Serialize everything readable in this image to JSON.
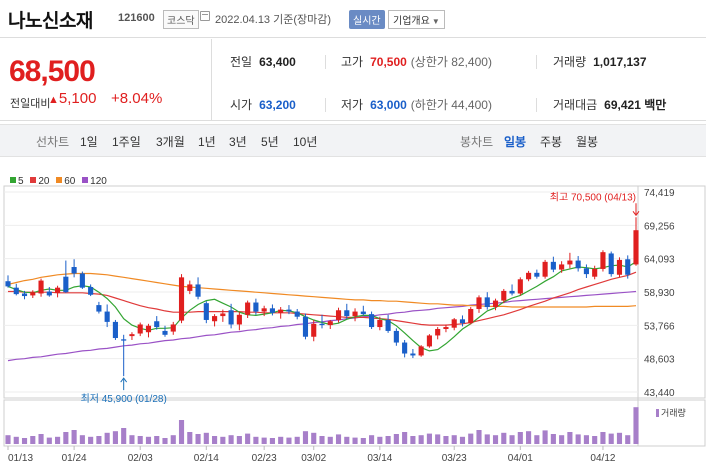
{
  "header": {
    "name": "나노신소재",
    "code": "121600",
    "market": "코스닥",
    "date": "2022.04.13 기준(장마감)",
    "realtime": "실시간",
    "company_info": "기업개요"
  },
  "quote": {
    "current": "68,500",
    "change_label": "전일대비",
    "change_value": "5,100",
    "change_pct": "+8.04%",
    "prev_label": "전일",
    "prev_value": "63,400",
    "high_label": "고가",
    "high_value": "70,500",
    "upper_limit": "(상한가 82,400)",
    "volume_label": "거래량",
    "volume_value": "1,017,137",
    "open_label": "시가",
    "open_value": "63,200",
    "low_label": "저가",
    "low_value": "63,000",
    "lower_limit": "(하한가 44,400)",
    "amount_label": "거래대금",
    "amount_value": "69,421 백만"
  },
  "toolbar": {
    "line_chart": "선차트",
    "periods": [
      "1일",
      "1주일",
      "3개월",
      "1년",
      "3년",
      "5년",
      "10년"
    ],
    "candle_chart": "봉차트",
    "candle_types": [
      "일봉",
      "주봉",
      "월봉"
    ],
    "active_candle": "일봉"
  },
  "colors": {
    "up": "#e01f1f",
    "down": "#1a5fc9",
    "ma5": "#33a532",
    "ma20": "#e03a3a",
    "ma60": "#f08a24",
    "ma120": "#9a52c6"
  },
  "chart_data": {
    "type": "candlestick",
    "legend": [
      {
        "name": "5",
        "color": "#33a532"
      },
      {
        "name": "20",
        "color": "#e03a3a"
      },
      {
        "name": "60",
        "color": "#f08a24"
      },
      {
        "name": "120",
        "color": "#9a52c6"
      }
    ],
    "y_ticks": [
      "74,419",
      "69,256",
      "64,093",
      "58,930",
      "53,766",
      "48,603",
      "43,440"
    ],
    "ylim": [
      43440,
      74419
    ],
    "x_ticks": [
      "01/13",
      "01/24",
      "02/03",
      "02/14",
      "02/23",
      "03/02",
      "03/14",
      "03/23",
      "04/01",
      "04/12"
    ],
    "annotations": {
      "max": "최고 70,500 (04/13)",
      "min": "최저 45,900 (01/28)"
    },
    "volume_label": "거래량",
    "candles": [
      {
        "o": 60600,
        "h": 61500,
        "l": 59600,
        "c": 59800
      },
      {
        "o": 59600,
        "h": 60200,
        "l": 58400,
        "c": 58600
      },
      {
        "o": 58700,
        "h": 59100,
        "l": 57800,
        "c": 58300
      },
      {
        "o": 58400,
        "h": 59200,
        "l": 58000,
        "c": 58900
      },
      {
        "o": 58700,
        "h": 61000,
        "l": 58200,
        "c": 60700
      },
      {
        "o": 59000,
        "h": 59700,
        "l": 58200,
        "c": 58400
      },
      {
        "o": 58800,
        "h": 59900,
        "l": 58100,
        "c": 59600
      },
      {
        "o": 61300,
        "h": 63800,
        "l": 58800,
        "c": 58900
      },
      {
        "o": 62800,
        "h": 64000,
        "l": 61200,
        "c": 61800
      },
      {
        "o": 61800,
        "h": 62100,
        "l": 59400,
        "c": 59600
      },
      {
        "o": 59700,
        "h": 60100,
        "l": 58300,
        "c": 58500
      },
      {
        "o": 56900,
        "h": 57400,
        "l": 55600,
        "c": 55900
      },
      {
        "o": 55900,
        "h": 57000,
        "l": 53500,
        "c": 54300
      },
      {
        "o": 54300,
        "h": 54600,
        "l": 51500,
        "c": 51800
      },
      {
        "o": 51600,
        "h": 52300,
        "l": 45900,
        "c": 51400
      },
      {
        "o": 52100,
        "h": 52700,
        "l": 51500,
        "c": 52400
      },
      {
        "o": 52500,
        "h": 54200,
        "l": 52100,
        "c": 53900
      },
      {
        "o": 52700,
        "h": 54000,
        "l": 51900,
        "c": 53700
      },
      {
        "o": 54400,
        "h": 55200,
        "l": 53100,
        "c": 53500
      },
      {
        "o": 52900,
        "h": 53700,
        "l": 52000,
        "c": 52300
      },
      {
        "o": 52800,
        "h": 54300,
        "l": 52300,
        "c": 53900
      },
      {
        "o": 54500,
        "h": 61700,
        "l": 54100,
        "c": 61200
      },
      {
        "o": 59100,
        "h": 60700,
        "l": 58600,
        "c": 60100
      },
      {
        "o": 60100,
        "h": 61200,
        "l": 57800,
        "c": 58200
      },
      {
        "o": 57200,
        "h": 57500,
        "l": 54100,
        "c": 54600
      },
      {
        "o": 54400,
        "h": 55500,
        "l": 53600,
        "c": 55200
      },
      {
        "o": 55200,
        "h": 56200,
        "l": 54300,
        "c": 55600
      },
      {
        "o": 56100,
        "h": 57100,
        "l": 53300,
        "c": 53900
      },
      {
        "o": 53900,
        "h": 55800,
        "l": 53000,
        "c": 55400
      },
      {
        "o": 55400,
        "h": 57600,
        "l": 54900,
        "c": 57300
      },
      {
        "o": 57300,
        "h": 57900,
        "l": 55400,
        "c": 55900
      },
      {
        "o": 55900,
        "h": 56800,
        "l": 55200,
        "c": 56400
      },
      {
        "o": 56400,
        "h": 57000,
        "l": 55300,
        "c": 55700
      },
      {
        "o": 55700,
        "h": 56600,
        "l": 54800,
        "c": 56200
      },
      {
        "o": 56200,
        "h": 56900,
        "l": 55500,
        "c": 55900
      },
      {
        "o": 55900,
        "h": 56300,
        "l": 54700,
        "c": 55100
      },
      {
        "o": 55100,
        "h": 55600,
        "l": 51600,
        "c": 52000
      },
      {
        "o": 52000,
        "h": 54600,
        "l": 51300,
        "c": 54000
      },
      {
        "o": 54000,
        "h": 55400,
        "l": 53300,
        "c": 53800
      },
      {
        "o": 53800,
        "h": 54600,
        "l": 53200,
        "c": 54400
      },
      {
        "o": 54600,
        "h": 56500,
        "l": 54200,
        "c": 56100
      },
      {
        "o": 56100,
        "h": 57100,
        "l": 54800,
        "c": 55200
      },
      {
        "o": 55200,
        "h": 56400,
        "l": 54400,
        "c": 55900
      },
      {
        "o": 55900,
        "h": 56800,
        "l": 55300,
        "c": 55500
      },
      {
        "o": 55500,
        "h": 55900,
        "l": 53200,
        "c": 53500
      },
      {
        "o": 53500,
        "h": 55100,
        "l": 53000,
        "c": 54600
      },
      {
        "o": 54600,
        "h": 55400,
        "l": 52600,
        "c": 52900
      },
      {
        "o": 52900,
        "h": 53300,
        "l": 50600,
        "c": 51100
      },
      {
        "o": 51100,
        "h": 51500,
        "l": 48800,
        "c": 49400
      },
      {
        "o": 49400,
        "h": 50100,
        "l": 48700,
        "c": 49100
      },
      {
        "o": 49100,
        "h": 50700,
        "l": 48900,
        "c": 50500
      },
      {
        "o": 50500,
        "h": 52400,
        "l": 50300,
        "c": 52200
      },
      {
        "o": 52200,
        "h": 53500,
        "l": 51600,
        "c": 53200
      },
      {
        "o": 53200,
        "h": 53900,
        "l": 52700,
        "c": 53500
      },
      {
        "o": 53400,
        "h": 54900,
        "l": 53000,
        "c": 54700
      },
      {
        "o": 54700,
        "h": 55300,
        "l": 53600,
        "c": 54100
      },
      {
        "o": 54100,
        "h": 56600,
        "l": 53900,
        "c": 56300
      },
      {
        "o": 56300,
        "h": 58400,
        "l": 55700,
        "c": 58100
      },
      {
        "o": 58100,
        "h": 58900,
        "l": 56200,
        "c": 56600
      },
      {
        "o": 56600,
        "h": 57900,
        "l": 56100,
        "c": 57600
      },
      {
        "o": 57600,
        "h": 59400,
        "l": 57200,
        "c": 59100
      },
      {
        "o": 59100,
        "h": 60100,
        "l": 58400,
        "c": 58700
      },
      {
        "o": 58700,
        "h": 61200,
        "l": 58400,
        "c": 60900
      },
      {
        "o": 60900,
        "h": 62200,
        "l": 60600,
        "c": 61900
      },
      {
        "o": 61900,
        "h": 62400,
        "l": 61000,
        "c": 61300
      },
      {
        "o": 61300,
        "h": 63900,
        "l": 61000,
        "c": 63600
      },
      {
        "o": 63600,
        "h": 64400,
        "l": 62000,
        "c": 62400
      },
      {
        "o": 62400,
        "h": 63700,
        "l": 61900,
        "c": 63200
      },
      {
        "o": 63200,
        "h": 65000,
        "l": 62600,
        "c": 63800
      },
      {
        "o": 63800,
        "h": 64500,
        "l": 62100,
        "c": 62600
      },
      {
        "o": 62600,
        "h": 63200,
        "l": 61100,
        "c": 61700
      },
      {
        "o": 61300,
        "h": 63000,
        "l": 60900,
        "c": 62500
      },
      {
        "o": 62500,
        "h": 65400,
        "l": 62100,
        "c": 65100
      },
      {
        "o": 64900,
        "h": 65200,
        "l": 61300,
        "c": 61700
      },
      {
        "o": 61600,
        "h": 64300,
        "l": 61200,
        "c": 63900
      },
      {
        "o": 64000,
        "h": 64600,
        "l": 61000,
        "c": 61600
      },
      {
        "o": 63200,
        "h": 70500,
        "l": 63000,
        "c": 68500
      }
    ],
    "volumes": [
      0.22,
      0.18,
      0.15,
      0.2,
      0.25,
      0.16,
      0.18,
      0.3,
      0.35,
      0.22,
      0.18,
      0.2,
      0.28,
      0.32,
      0.4,
      0.22,
      0.2,
      0.18,
      0.2,
      0.15,
      0.22,
      0.6,
      0.3,
      0.25,
      0.28,
      0.2,
      0.18,
      0.22,
      0.2,
      0.26,
      0.18,
      0.16,
      0.15,
      0.18,
      0.16,
      0.18,
      0.32,
      0.28,
      0.2,
      0.18,
      0.24,
      0.18,
      0.16,
      0.15,
      0.22,
      0.18,
      0.2,
      0.25,
      0.3,
      0.2,
      0.22,
      0.26,
      0.24,
      0.2,
      0.22,
      0.18,
      0.26,
      0.35,
      0.24,
      0.22,
      0.28,
      0.22,
      0.3,
      0.32,
      0.22,
      0.34,
      0.25,
      0.22,
      0.3,
      0.24,
      0.22,
      0.2,
      0.3,
      0.26,
      0.28,
      0.22,
      0.92
    ],
    "ma5": [
      59800,
      59300,
      58900,
      58800,
      59200,
      59400,
      59200,
      59200,
      59700,
      59900,
      59700,
      58900,
      57900,
      56600,
      54800,
      53800,
      53300,
      53000,
      53300,
      53300,
      53400,
      54900,
      56100,
      57000,
      57600,
      57800,
      57200,
      56600,
      55800,
      55400,
      55300,
      55500,
      55700,
      56100,
      56000,
      55700,
      55100,
      54600,
      54200,
      53900,
      54100,
      54700,
      55100,
      55300,
      55300,
      54800,
      54500,
      53700,
      52600,
      51400,
      50300,
      49800,
      50000,
      50900,
      52000,
      53200,
      54000,
      55000,
      56000,
      56500,
      57400,
      58000,
      58400,
      59100,
      59800,
      60600,
      61300,
      62200,
      62500,
      62800,
      62700,
      62500,
      62700,
      63000,
      63100,
      62800,
      63600
    ],
    "ma20": [
      59000,
      59000,
      58900,
      58900,
      58900,
      58900,
      58800,
      58800,
      58800,
      58800,
      58700,
      58600,
      58400,
      58000,
      57600,
      57200,
      56800,
      56500,
      56300,
      56000,
      55800,
      55800,
      55800,
      55900,
      55900,
      55900,
      55900,
      55900,
      55900,
      55800,
      55800,
      55700,
      55700,
      55700,
      55700,
      55600,
      55500,
      55400,
      55300,
      55200,
      55100,
      55000,
      55000,
      55000,
      54900,
      54800,
      54700,
      54500,
      54300,
      54100,
      53900,
      53800,
      53800,
      53800,
      53900,
      54000,
      54200,
      54500,
      54800,
      55100,
      55400,
      55800,
      56200,
      56700,
      57100,
      57500,
      58000,
      58400,
      58800,
      59300,
      59700,
      60100,
      60500,
      60900,
      61200,
      61500,
      62000
    ],
    "ma60": [
      60100,
      60400,
      60700,
      60900,
      61200,
      61400,
      61600,
      61700,
      61800,
      61800,
      61800,
      61700,
      61600,
      61400,
      61200,
      61000,
      60800,
      60600,
      60400,
      60200,
      60000,
      59800,
      59700,
      59600,
      59500,
      59400,
      59300,
      59200,
      59100,
      59000,
      58900,
      58800,
      58700,
      58600,
      58500,
      58400,
      58300,
      58200,
      58100,
      58000,
      57900,
      57800,
      57700,
      57700,
      57600,
      57600,
      57500,
      57500,
      57400,
      57300,
      57200,
      57100,
      57100,
      57000,
      56900,
      56900,
      56800,
      56800,
      56700,
      56700,
      56700,
      56600,
      56600,
      56600,
      56600,
      56600,
      56600,
      56600,
      56600,
      56600,
      56600,
      56700,
      56700,
      56700,
      56700,
      56700,
      56800
    ],
    "ma120": [
      48300,
      48500,
      48600,
      48800,
      48900,
      49100,
      49300,
      49400,
      49600,
      49800,
      49900,
      50100,
      50200,
      50400,
      50600,
      50700,
      50900,
      51000,
      51200,
      51400,
      51500,
      51700,
      51800,
      52000,
      52200,
      52300,
      52500,
      52700,
      52800,
      53000,
      53100,
      53300,
      53400,
      53600,
      53700,
      53900,
      54000,
      54200,
      54300,
      54500,
      54600,
      54800,
      54900,
      55100,
      55200,
      55400,
      55500,
      55700,
      55800,
      56000,
      56100,
      56200,
      56400,
      56500,
      56600,
      56700,
      56900,
      57000,
      57100,
      57200,
      57300,
      57500,
      57600,
      57700,
      57800,
      57900,
      58000,
      58100,
      58200,
      58300,
      58400,
      58500,
      58600,
      58700,
      58800,
      58900,
      59000
    ]
  }
}
